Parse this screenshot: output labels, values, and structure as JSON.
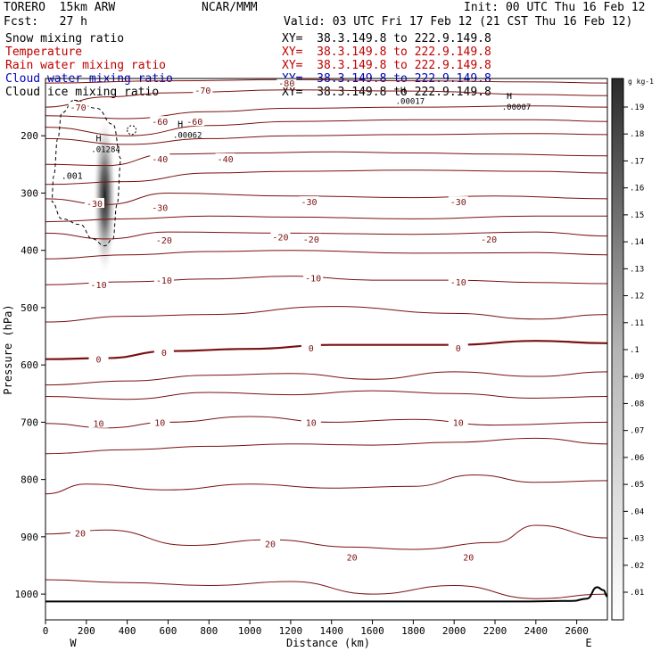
{
  "header": {
    "model": "TORERO  15km ARW",
    "org": "NCAR/MMM",
    "init": "Init: 00 UTC Thu 16 Feb 12",
    "fcst": "Fcst:   27 h",
    "valid": "Valid: 03 UTC Fri 17 Feb 12 (21 CST Thu 16 Feb 12)"
  },
  "fields": [
    {
      "name": "Snow mixing ratio",
      "xy": "XY=  38.3.149.8 to 222.9.149.8",
      "color": "#000000"
    },
    {
      "name": "Temperature",
      "xy": "XY=  38.3.149.8 to 222.9.149.8",
      "color": "#c00000"
    },
    {
      "name": "Rain water mixing ratio",
      "xy": "XY=  38.3.149.8 to 222.9.149.8",
      "color": "#c00000"
    },
    {
      "name": "Cloud water mixing ratio",
      "xy": "XY=  38.3.149.8 to 222.9.149.8",
      "color": "#0000c0"
    },
    {
      "name": "Cloud ice mixing ratio",
      "xy": "XY=  38.3.149.8 to 222.9.149.8",
      "color": "#000000"
    }
  ],
  "colors": {
    "temperature": "#7a1010",
    "zero_isotherm": "#7a1010",
    "cloud_ice": "#000000",
    "terrain": "#000000"
  },
  "chart_data": {
    "type": "contour",
    "xlabel": "Distance (km)",
    "ylabel": "Pressure (hPa)",
    "xlim": [
      0,
      2750
    ],
    "ylim": [
      1045,
      100
    ],
    "xticks": [
      0,
      200,
      400,
      600,
      800,
      1000,
      1200,
      1400,
      1600,
      1800,
      2000,
      2200,
      2400,
      2600
    ],
    "yticks": [
      200,
      300,
      400,
      500,
      600,
      700,
      800,
      900,
      1000
    ],
    "end_labels": {
      "left": "W",
      "right": "E"
    },
    "colorbar": {
      "unit": "g kg-1",
      "ticks": [
        ".01",
        ".02",
        ".03",
        ".04",
        ".05",
        ".06",
        ".07",
        ".08",
        ".09",
        ".1",
        ".11",
        ".12",
        ".13",
        ".14",
        ".15",
        ".16",
        ".17",
        ".18",
        ".19"
      ]
    },
    "temperature_contours": [
      {
        "label": "-80",
        "points": [
          [
            0,
            108
          ],
          [
            600,
            104
          ],
          [
            1200,
            102
          ],
          [
            1800,
            104
          ],
          [
            2400,
            106
          ],
          [
            2750,
            108
          ]
        ]
      },
      {
        "label": "-70",
        "points": [
          [
            0,
            150
          ],
          [
            300,
            132
          ],
          [
            600,
            125
          ],
          [
            1200,
            120
          ],
          [
            1800,
            122
          ],
          [
            2400,
            128
          ],
          [
            2750,
            130
          ]
        ]
      },
      {
        "label": "-60",
        "points": [
          [
            0,
            165
          ],
          [
            400,
            170
          ],
          [
            800,
            158
          ],
          [
            1200,
            152
          ],
          [
            1800,
            150
          ],
          [
            2400,
            148
          ],
          [
            2750,
            150
          ]
        ]
      },
      {
        "label": "",
        "points": [
          [
            0,
            185
          ],
          [
            400,
            200
          ],
          [
            800,
            182
          ],
          [
            1200,
            175
          ],
          [
            1800,
            172
          ],
          [
            2400,
            172
          ],
          [
            2750,
            175
          ]
        ]
      },
      {
        "label": "",
        "points": [
          [
            0,
            205
          ],
          [
            400,
            215
          ],
          [
            800,
            205
          ],
          [
            1200,
            200
          ],
          [
            1800,
            198
          ],
          [
            2400,
            196
          ],
          [
            2750,
            198
          ]
        ]
      },
      {
        "label": "-40",
        "points": [
          [
            0,
            250
          ],
          [
            300,
            252
          ],
          [
            600,
            232
          ],
          [
            1000,
            230
          ],
          [
            1400,
            228
          ],
          [
            1800,
            230
          ],
          [
            2200,
            232
          ],
          [
            2750,
            235
          ]
        ]
      },
      {
        "label": "",
        "points": [
          [
            0,
            285
          ],
          [
            400,
            280
          ],
          [
            800,
            265
          ],
          [
            1200,
            262
          ],
          [
            1800,
            260
          ],
          [
            2400,
            262
          ],
          [
            2750,
            265
          ]
        ]
      },
      {
        "label": "-30",
        "points": [
          [
            0,
            310
          ],
          [
            300,
            320
          ],
          [
            600,
            300
          ],
          [
            1200,
            305
          ],
          [
            1800,
            308
          ],
          [
            2200,
            305
          ],
          [
            2750,
            310
          ]
        ]
      },
      {
        "label": "",
        "points": [
          [
            0,
            350
          ],
          [
            400,
            345
          ],
          [
            800,
            340
          ],
          [
            1200,
            342
          ],
          [
            1800,
            345
          ],
          [
            2400,
            340
          ],
          [
            2750,
            340
          ]
        ]
      },
      {
        "label": "-20",
        "points": [
          [
            0,
            370
          ],
          [
            300,
            380
          ],
          [
            600,
            368
          ],
          [
            1200,
            370
          ],
          [
            1800,
            372
          ],
          [
            2400,
            368
          ],
          [
            2750,
            375
          ]
        ]
      },
      {
        "label": "",
        "points": [
          [
            0,
            415
          ],
          [
            400,
            408
          ],
          [
            800,
            402
          ],
          [
            1200,
            400
          ],
          [
            1800,
            405
          ],
          [
            2400,
            404
          ],
          [
            2750,
            408
          ]
        ]
      },
      {
        "label": "-10",
        "points": [
          [
            0,
            460
          ],
          [
            400,
            455
          ],
          [
            800,
            450
          ],
          [
            1200,
            445
          ],
          [
            1600,
            452
          ],
          [
            2000,
            452
          ],
          [
            2400,
            456
          ],
          [
            2750,
            458
          ]
        ]
      },
      {
        "label": "",
        "points": [
          [
            0,
            525
          ],
          [
            400,
            515
          ],
          [
            800,
            512
          ],
          [
            1400,
            498
          ],
          [
            2000,
            510
          ],
          [
            2400,
            520
          ],
          [
            2750,
            512
          ]
        ]
      },
      {
        "label": "0",
        "points": [
          [
            0,
            590
          ],
          [
            300,
            588
          ],
          [
            600,
            576
          ],
          [
            1000,
            572
          ],
          [
            1400,
            565
          ],
          [
            2000,
            565
          ],
          [
            2400,
            558
          ],
          [
            2750,
            562
          ]
        ]
      },
      {
        "label": "",
        "points": [
          [
            0,
            635
          ],
          [
            400,
            628
          ],
          [
            800,
            618
          ],
          [
            1200,
            615
          ],
          [
            1600,
            625
          ],
          [
            2000,
            612
          ],
          [
            2400,
            620
          ],
          [
            2750,
            612
          ]
        ]
      },
      {
        "label": "",
        "points": [
          [
            0,
            655
          ],
          [
            400,
            660
          ],
          [
            800,
            648
          ],
          [
            1200,
            652
          ],
          [
            1600,
            645
          ],
          [
            2000,
            650
          ],
          [
            2400,
            658
          ],
          [
            2750,
            655
          ]
        ]
      },
      {
        "label": "10",
        "points": [
          [
            0,
            702
          ],
          [
            300,
            710
          ],
          [
            600,
            700
          ],
          [
            1000,
            690
          ],
          [
            1400,
            700
          ],
          [
            1800,
            695
          ],
          [
            2200,
            705
          ],
          [
            2750,
            700
          ]
        ]
      },
      {
        "label": "",
        "points": [
          [
            0,
            755
          ],
          [
            400,
            748
          ],
          [
            800,
            742
          ],
          [
            1200,
            738
          ],
          [
            1600,
            740
          ],
          [
            2000,
            735
          ],
          [
            2400,
            728
          ],
          [
            2750,
            738
          ]
        ]
      },
      {
        "label": "",
        "points": [
          [
            0,
            825
          ],
          [
            200,
            808
          ],
          [
            600,
            818
          ],
          [
            1000,
            808
          ],
          [
            1400,
            815
          ],
          [
            1800,
            812
          ],
          [
            2100,
            792
          ],
          [
            2400,
            805
          ],
          [
            2750,
            802
          ]
        ]
      },
      {
        "label": "20",
        "points": [
          [
            0,
            895
          ],
          [
            300,
            888
          ],
          [
            700,
            915
          ],
          [
            1100,
            905
          ],
          [
            1500,
            918
          ],
          [
            1800,
            922
          ],
          [
            2200,
            910
          ],
          [
            2400,
            880
          ],
          [
            2750,
            902
          ]
        ]
      },
      {
        "label": "",
        "points": [
          [
            0,
            975
          ],
          [
            400,
            980
          ],
          [
            800,
            985
          ],
          [
            1200,
            978
          ],
          [
            1600,
            1000
          ],
          [
            2000,
            985
          ],
          [
            2400,
            1008
          ],
          [
            2750,
            1000
          ]
        ]
      }
    ],
    "contour_labels": [
      {
        "text": "-80",
        "x": 1180,
        "y": 108
      },
      {
        "text": "-70",
        "x": 160,
        "y": 150
      },
      {
        "text": "-70",
        "x": 770,
        "y": 120
      },
      {
        "text": "-60",
        "x": 560,
        "y": 175
      },
      {
        "text": "-60",
        "x": 730,
        "y": 175
      },
      {
        "text": "-40",
        "x": 560,
        "y": 240
      },
      {
        "text": "-40",
        "x": 880,
        "y": 240
      },
      {
        "text": "-30",
        "x": 240,
        "y": 318
      },
      {
        "text": "-30",
        "x": 560,
        "y": 325
      },
      {
        "text": "-30",
        "x": 1290,
        "y": 315
      },
      {
        "text": "-30",
        "x": 2020,
        "y": 315
      },
      {
        "text": "-20",
        "x": 580,
        "y": 382
      },
      {
        "text": "-20",
        "x": 1150,
        "y": 376
      },
      {
        "text": "-20",
        "x": 1300,
        "y": 380
      },
      {
        "text": "-20",
        "x": 2170,
        "y": 380
      },
      {
        "text": "-10",
        "x": 260,
        "y": 460
      },
      {
        "text": "-10",
        "x": 580,
        "y": 452
      },
      {
        "text": "-10",
        "x": 1310,
        "y": 448
      },
      {
        "text": "-10",
        "x": 2020,
        "y": 455
      },
      {
        "text": "0",
        "x": 260,
        "y": 590
      },
      {
        "text": "0",
        "x": 580,
        "y": 578
      },
      {
        "text": "0",
        "x": 1300,
        "y": 570
      },
      {
        "text": "0",
        "x": 2020,
        "y": 570
      },
      {
        "text": "10",
        "x": 260,
        "y": 702
      },
      {
        "text": "10",
        "x": 560,
        "y": 700
      },
      {
        "text": "10",
        "x": 1300,
        "y": 700
      },
      {
        "text": "10",
        "x": 2020,
        "y": 700
      },
      {
        "text": "20",
        "x": 170,
        "y": 893
      },
      {
        "text": "20",
        "x": 1100,
        "y": 912
      },
      {
        "text": "20",
        "x": 1500,
        "y": 935
      },
      {
        "text": "20",
        "x": 2070,
        "y": 935
      }
    ],
    "cloud_ice_contour": {
      "label": ".001",
      "points": [
        [
          140,
          138
        ],
        [
          250,
          152
        ],
        [
          330,
          180
        ],
        [
          370,
          240
        ],
        [
          350,
          320
        ],
        [
          330,
          380
        ],
        [
          290,
          392
        ],
        [
          230,
          380
        ],
        [
          170,
          355
        ],
        [
          80,
          345
        ],
        [
          30,
          315
        ],
        [
          40,
          270
        ],
        [
          60,
          205
        ],
        [
          80,
          160
        ],
        [
          140,
          138
        ]
      ]
    },
    "extrema": [
      {
        "text": "H",
        "x": 260,
        "y": 210,
        "value": ".01284"
      },
      {
        "text": "H",
        "x": 660,
        "y": 185,
        "value": ".00062"
      },
      {
        "text": "H",
        "x": 1750,
        "y": 126,
        "value": ".00017"
      },
      {
        "text": "H",
        "x": 2270,
        "y": 136,
        "value": ".00007"
      }
    ],
    "snow_maximum": {
      "x": 290,
      "p": 305,
      "value": 0.19
    },
    "surface_pressure": {
      "points": [
        [
          0,
          1013
        ],
        [
          600,
          1013
        ],
        [
          1200,
          1013
        ],
        [
          1800,
          1013
        ],
        [
          2300,
          1013
        ],
        [
          2580,
          1012
        ],
        [
          2650,
          1008
        ],
        [
          2700,
          988
        ],
        [
          2730,
          993
        ],
        [
          2750,
          1004
        ]
      ]
    }
  }
}
